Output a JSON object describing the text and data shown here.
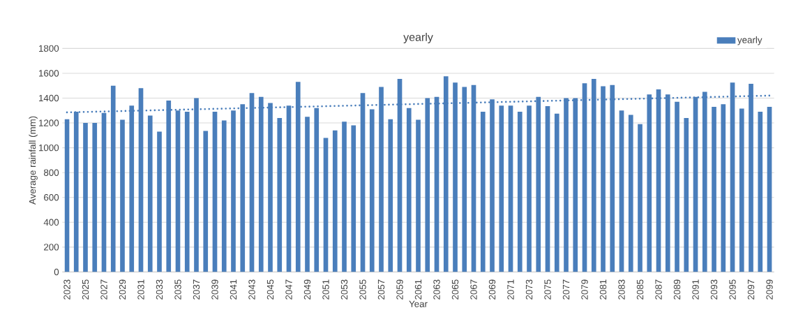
{
  "chart_data": {
    "type": "bar",
    "title": "yearly",
    "xlabel": "Year",
    "ylabel": "Average rainfall (mm)",
    "x": [
      2023,
      2024,
      2025,
      2026,
      2027,
      2028,
      2029,
      2030,
      2031,
      2032,
      2033,
      2034,
      2035,
      2036,
      2037,
      2038,
      2039,
      2040,
      2041,
      2042,
      2043,
      2044,
      2045,
      2046,
      2047,
      2048,
      2049,
      2050,
      2051,
      2052,
      2053,
      2054,
      2055,
      2056,
      2057,
      2058,
      2059,
      2060,
      2061,
      2062,
      2063,
      2064,
      2065,
      2066,
      2067,
      2068,
      2069,
      2070,
      2071,
      2072,
      2073,
      2074,
      2075,
      2076,
      2077,
      2078,
      2079,
      2080,
      2081,
      2082,
      2083,
      2084,
      2085,
      2086,
      2087,
      2088,
      2089,
      2090,
      2091,
      2092,
      2093,
      2094,
      2095,
      2096,
      2097,
      2098,
      2099
    ],
    "series": [
      {
        "name": "yearly",
        "color": "#4a7ebb",
        "values": [
          1230,
          1290,
          1200,
          1200,
          1280,
          1500,
          1225,
          1340,
          1480,
          1260,
          1130,
          1380,
          1300,
          1290,
          1400,
          1135,
          1290,
          1220,
          1300,
          1350,
          1440,
          1410,
          1360,
          1240,
          1340,
          1530,
          1250,
          1320,
          1080,
          1140,
          1210,
          1180,
          1440,
          1310,
          1490,
          1230,
          1555,
          1320,
          1225,
          1400,
          1410,
          1575,
          1525,
          1490,
          1505,
          1290,
          1390,
          1340,
          1340,
          1290,
          1340,
          1410,
          1335,
          1275,
          1400,
          1400,
          1520,
          1555,
          1495,
          1505,
          1300,
          1265,
          1190,
          1430,
          1470,
          1430,
          1370,
          1240,
          1410,
          1450,
          1330,
          1350,
          1525,
          1315,
          1515,
          1290,
          1330
        ]
      },
      {
        "type": "line",
        "color": "#4a7ebb",
        "line_style": "dotted",
        "x": [
          2023,
          2099
        ],
        "values": [
          1285,
          1420
        ]
      }
    ],
    "xlim": [
      2022.5,
      2099.5
    ],
    "xticks": [
      2023,
      2025,
      2027,
      2029,
      2031,
      2033,
      2035,
      2037,
      2039,
      2041,
      2043,
      2045,
      2047,
      2049,
      2051,
      2053,
      2055,
      2057,
      2059,
      2061,
      2063,
      2065,
      2067,
      2069,
      2071,
      2073,
      2075,
      2077,
      2079,
      2081,
      2083,
      2085,
      2087,
      2089,
      2091,
      2093,
      2095,
      2097,
      2099
    ],
    "ylim": [
      0,
      1800
    ],
    "yticks": [
      0,
      200,
      400,
      600,
      800,
      1000,
      1200,
      1400,
      1600,
      1800
    ],
    "grid": "y",
    "legend": "top right"
  }
}
